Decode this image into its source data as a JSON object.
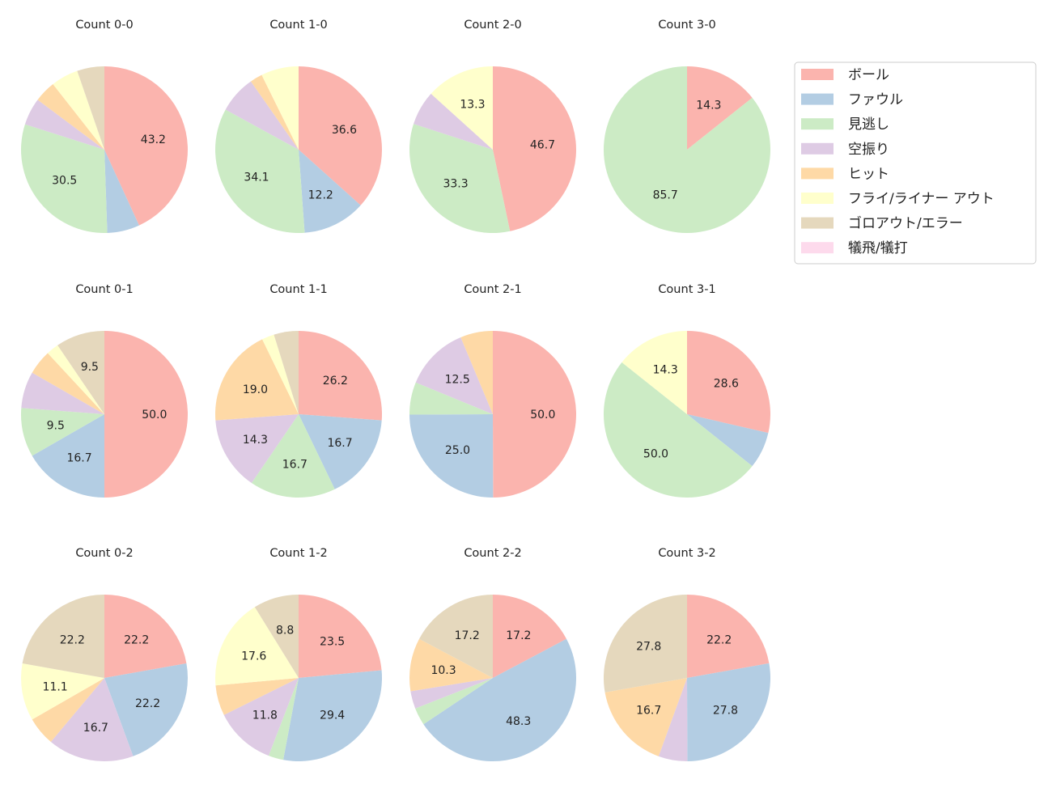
{
  "chart_data": {
    "type": "pie",
    "start_angle": 90,
    "direction": "clockwise",
    "legend": {
      "placement": "top-right",
      "entries": [
        "ボール",
        "ファウル",
        "見逃し",
        "空振り",
        "ヒット",
        "フライ/ライナー アウト",
        "ゴロアウト/エラー",
        "犠飛/犠打"
      ],
      "colors": [
        "#fbb4ae",
        "#b3cde3",
        "#ccebc5",
        "#decbe4",
        "#fed9a6",
        "#ffffcc",
        "#e5d8bd",
        "#fddaec"
      ]
    },
    "pies": [
      {
        "title": "Count 0-0",
        "values": [
          43.2,
          6.3,
          30.5,
          5.3,
          4.2,
          5.3,
          5.3,
          0
        ]
      },
      {
        "title": "Count 1-0",
        "values": [
          36.6,
          12.2,
          34.1,
          7.3,
          2.4,
          7.3,
          0,
          0
        ]
      },
      {
        "title": "Count 2-0",
        "values": [
          46.7,
          0,
          33.3,
          6.7,
          0,
          13.3,
          0,
          0
        ]
      },
      {
        "title": "Count 3-0",
        "values": [
          14.3,
          0,
          85.7,
          0,
          0,
          0,
          0,
          0
        ]
      },
      {
        "title": "Count 0-1",
        "values": [
          50.0,
          16.7,
          9.5,
          7.1,
          4.8,
          2.4,
          9.5,
          0
        ]
      },
      {
        "title": "Count 1-1",
        "values": [
          26.2,
          16.7,
          16.7,
          14.3,
          19.0,
          2.4,
          4.8,
          0
        ]
      },
      {
        "title": "Count 2-1",
        "values": [
          50.0,
          25.0,
          6.3,
          12.5,
          6.3,
          0,
          0,
          0
        ]
      },
      {
        "title": "Count 3-1",
        "values": [
          28.6,
          7.1,
          50.0,
          0,
          0,
          14.3,
          0,
          0
        ]
      },
      {
        "title": "Count 0-2",
        "values": [
          22.2,
          22.2,
          0,
          16.7,
          5.6,
          11.1,
          22.2,
          0
        ]
      },
      {
        "title": "Count 1-2",
        "values": [
          23.5,
          29.4,
          2.9,
          11.8,
          5.9,
          17.6,
          8.8,
          0
        ]
      },
      {
        "title": "Count 2-2",
        "values": [
          17.2,
          48.3,
          3.4,
          3.4,
          10.3,
          0,
          17.2,
          0
        ]
      },
      {
        "title": "Count 3-2",
        "values": [
          22.2,
          27.8,
          0,
          5.6,
          16.7,
          0,
          27.8,
          0
        ]
      }
    ]
  }
}
